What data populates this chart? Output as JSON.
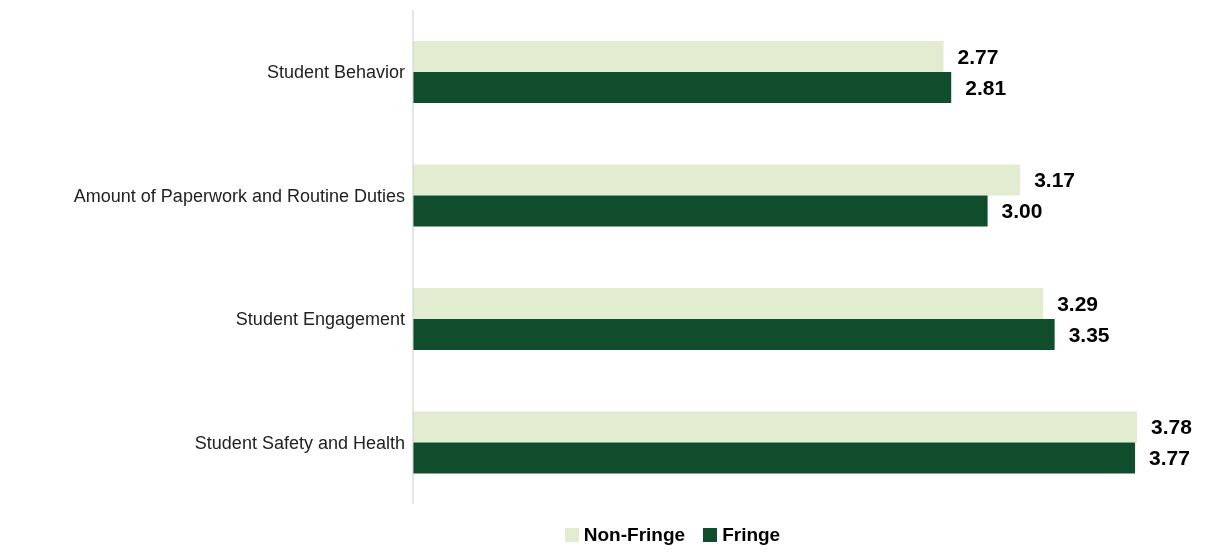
{
  "chart_data": {
    "type": "bar",
    "orientation": "horizontal",
    "categories": [
      "Student Behavior",
      "Amount of Paperwork and Routine Duties",
      "Student Engagement",
      "Student Safety and Health"
    ],
    "series": [
      {
        "name": "Non-Fringe",
        "color": "#e2ecd0",
        "values": [
          2.77,
          3.17,
          3.29,
          3.78
        ],
        "value_labels": [
          "2.77",
          "3.17",
          "3.29",
          "3.78"
        ]
      },
      {
        "name": "Fringe",
        "color": "#0f4d2c",
        "values": [
          2.81,
          3.0,
          3.35,
          3.77
        ],
        "value_labels": [
          "2.81",
          "3.00",
          "3.35",
          "3.77"
        ]
      }
    ],
    "tick_labels": "y",
    "legend": "bottom"
  }
}
